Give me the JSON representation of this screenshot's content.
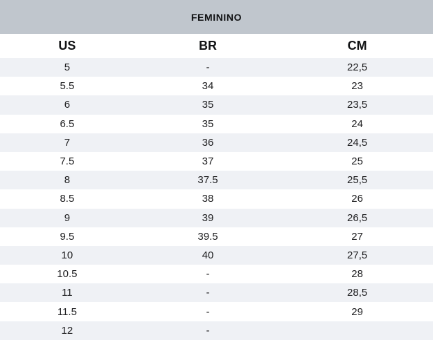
{
  "title": "FEMININO",
  "table": {
    "columns": [
      "US",
      "BR",
      "CM"
    ],
    "rows": [
      [
        "5",
        "-",
        "22,5"
      ],
      [
        "5.5",
        "34",
        "23"
      ],
      [
        "6",
        "35",
        "23,5"
      ],
      [
        "6.5",
        "35",
        "24"
      ],
      [
        "7",
        "36",
        "24,5"
      ],
      [
        "7.5",
        "37",
        "25"
      ],
      [
        "8",
        "37.5",
        "25,5"
      ],
      [
        "8.5",
        "38",
        "26"
      ],
      [
        "9",
        "39",
        "26,5"
      ],
      [
        "9.5",
        "39.5",
        "27"
      ],
      [
        "10",
        "40",
        "27,5"
      ],
      [
        "10.5",
        "-",
        "28"
      ],
      [
        "11",
        "-",
        "28,5"
      ],
      [
        "11.5",
        "-",
        "29"
      ],
      [
        "12",
        "-",
        ""
      ]
    ]
  },
  "colors": {
    "header_bar": "#c0c6cd",
    "stripe": "#eff1f5",
    "text": "#1c1c1e"
  }
}
